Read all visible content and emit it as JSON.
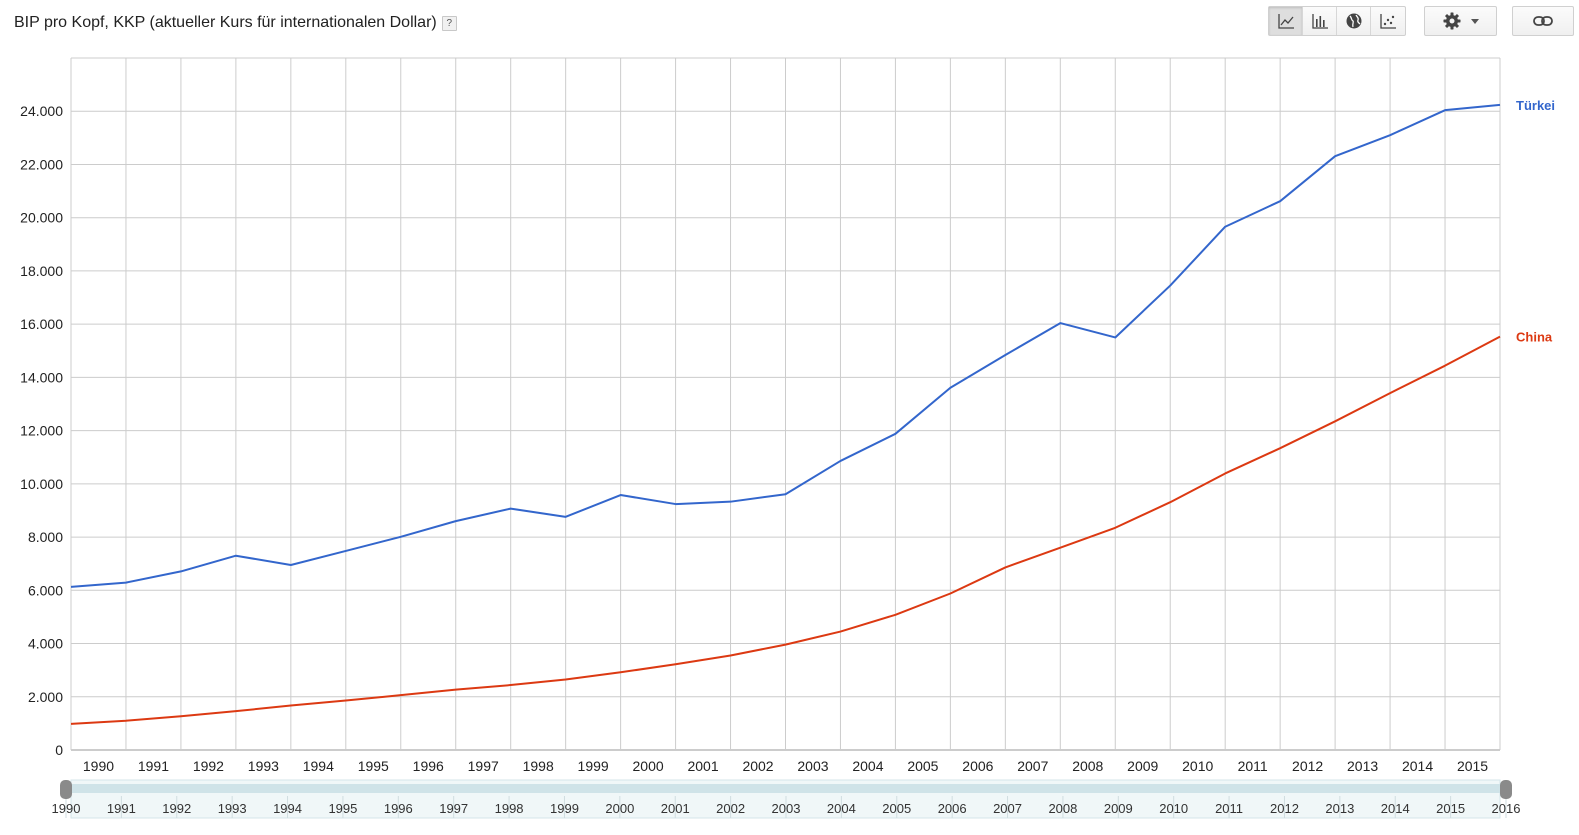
{
  "header": {
    "title": "BIP pro Kopf, KKP (aktueller Kurs für internationalen Dollar)",
    "help_label": "?"
  },
  "toolbar": {
    "chart_types": [
      {
        "name": "line-chart",
        "icon": "line-chart-icon",
        "active": true
      },
      {
        "name": "bar-chart",
        "icon": "bar-chart-icon",
        "active": false
      },
      {
        "name": "map-chart",
        "icon": "globe-icon",
        "active": false
      },
      {
        "name": "scatter-chart",
        "icon": "scatter-icon",
        "active": false
      }
    ],
    "settings_icon": "gear-icon",
    "dropdown_icon": "caret-down-icon",
    "link_icon": "link-icon"
  },
  "colors": {
    "turkei": "#3366cc",
    "china": "#dc3912",
    "grid": "#cccccc",
    "text": "#222222"
  },
  "chart_data": {
    "type": "line",
    "title": "BIP pro Kopf, KKP (aktueller Kurs für internationalen Dollar)",
    "x": [
      1990,
      1991,
      1992,
      1993,
      1994,
      1995,
      1996,
      1997,
      1998,
      1999,
      2000,
      2001,
      2002,
      2003,
      2004,
      2005,
      2006,
      2007,
      2008,
      2009,
      2010,
      2011,
      2012,
      2013,
      2014,
      2015,
      2016
    ],
    "series": [
      {
        "name": "Türkei",
        "color": "#3366cc",
        "values": [
          6130,
          6290,
          6710,
          7300,
          6950,
          7480,
          8010,
          8600,
          9070,
          8760,
          9580,
          9240,
          9330,
          9610,
          10860,
          11880,
          13610,
          14840,
          16040,
          15500,
          17450,
          19660,
          20620,
          22310,
          23100,
          24040,
          24240
        ]
      },
      {
        "name": "China",
        "color": "#dc3912",
        "values": [
          980,
          1100,
          1270,
          1460,
          1670,
          1860,
          2060,
          2270,
          2440,
          2650,
          2920,
          3220,
          3550,
          3960,
          4450,
          5080,
          5880,
          6860,
          7600,
          8350,
          9310,
          10390,
          11340,
          12350,
          13410,
          14440,
          15530
        ]
      }
    ],
    "yticks": [
      "0",
      "2.000",
      "4.000",
      "6.000",
      "8.000",
      "10.000",
      "12.000",
      "14.000",
      "16.000",
      "18.000",
      "20.000",
      "22.000",
      "24.000"
    ],
    "ylim": [
      0,
      26000
    ],
    "xlabels": [
      "1990",
      "1991",
      "1992",
      "1993",
      "1994",
      "1995",
      "1996",
      "1997",
      "1998",
      "1999",
      "2000",
      "2001",
      "2002",
      "2003",
      "2004",
      "2005",
      "2006",
      "2007",
      "2008",
      "2009",
      "2010",
      "2011",
      "2012",
      "2013",
      "2014",
      "2015"
    ],
    "slider_labels": [
      "1990",
      "1991",
      "1992",
      "1993",
      "1994",
      "1995",
      "1996",
      "1997",
      "1998",
      "1999",
      "2000",
      "2001",
      "2002",
      "2003",
      "2004",
      "2005",
      "2006",
      "2007",
      "2008",
      "2009",
      "2010",
      "2011",
      "2012",
      "2013",
      "2014",
      "2015",
      "2016"
    ],
    "slider_range": [
      1990,
      2016
    ],
    "grid": true,
    "legend": "line-end labels"
  }
}
